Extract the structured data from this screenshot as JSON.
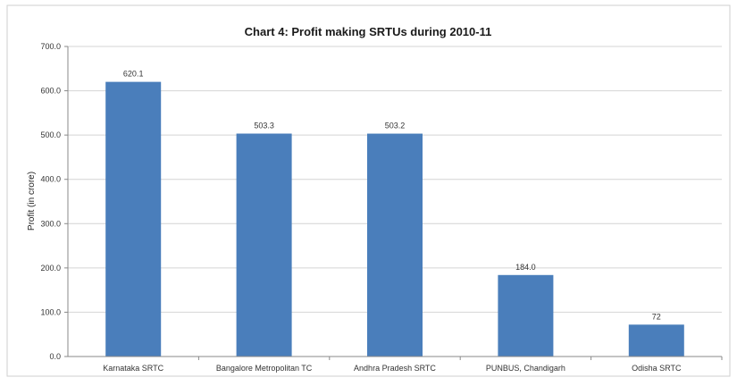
{
  "chart_data": {
    "type": "bar",
    "title": "Chart 4: Profit making SRTUs during 2010-11",
    "ylabel": "Profit (in crore)",
    "xlabel": "",
    "ylim": [
      0,
      700
    ],
    "yticks": [
      "0.0",
      "100.0",
      "200.0",
      "300.0",
      "400.0",
      "500.0",
      "600.0",
      "700.0"
    ],
    "ytick_values": [
      0,
      100,
      200,
      300,
      400,
      500,
      600,
      700
    ],
    "categories": [
      "Karnataka SRTC",
      "Bangalore Metropolitan TC",
      "Andhra Pradesh SRTC",
      "PUNBUS, Chandigarh",
      "Odisha SRTC"
    ],
    "values": [
      620.1,
      503.3,
      503.2,
      184.0,
      72.0
    ],
    "value_labels": [
      "620.1",
      "503.3",
      "503.2",
      "184.0",
      "72"
    ],
    "bar_color": "#4a7ebb",
    "grid": true,
    "legend": "none"
  }
}
